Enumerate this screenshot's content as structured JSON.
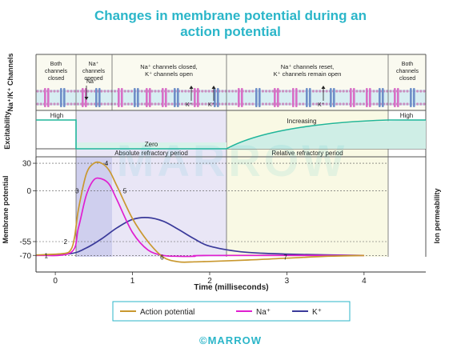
{
  "title_line1": "Changes in membrane potential during an",
  "title_line2": "action potential",
  "row_labels": {
    "channels": "Na⁺/K⁺ Channels",
    "excitability": "Excitability",
    "membrane_potential": "Membrane potential",
    "ion_permeability": "Ion permeability"
  },
  "channel_states": [
    "Both channels closed",
    "Na⁺ channels opened",
    "Na⁺ channels closed, K⁺ channels open",
    "Na⁺ channels reset, K⁺ channels remain open",
    "Both channels closed"
  ],
  "channel_ion_labels": {
    "na": "Na⁺",
    "k": "K⁺"
  },
  "excitability": {
    "high_left": "High",
    "zero": "Zero",
    "increasing": "Increasing",
    "high_right": "High"
  },
  "refractory": {
    "absolute": "Absolute refractory period",
    "relative": "Relative refractory period"
  },
  "x_axis": {
    "label": "Time (milliseconds)",
    "ticks": [
      "0",
      "1",
      "2",
      "3",
      "4"
    ]
  },
  "y_axis": {
    "ticks": [
      "30",
      "0",
      "-55",
      "-70"
    ]
  },
  "point_labels": [
    "1",
    "2",
    "3",
    "4",
    "5",
    "6",
    "7"
  ],
  "legend": {
    "action_potential": "Action potential",
    "na": "Na⁺",
    "k": "K⁺"
  },
  "colors": {
    "action_potential": "#c9982f",
    "na": "#e01fd0",
    "k": "#3a3a9a",
    "accent": "#2bb6c9"
  },
  "watermark": "MARROW",
  "credit": "©MARROW",
  "chart_data": {
    "type": "line",
    "xlabel": "Time (milliseconds)",
    "ylabel": "Membrane potential",
    "xlim": [
      -0.25,
      4.8
    ],
    "ylim": [
      -88,
      37
    ],
    "series": [
      {
        "name": "Action potential",
        "x": [
          -0.25,
          0.1,
          0.2,
          0.25,
          0.3,
          0.4,
          0.5,
          0.6,
          0.7,
          0.8,
          1.0,
          1.2,
          1.4,
          1.6,
          1.8,
          2.0,
          2.5,
          3.0,
          3.5,
          4.0
        ],
        "y": [
          -69.5,
          -68,
          -64,
          -50,
          -20,
          18,
          30,
          30,
          22,
          5,
          -30,
          -55,
          -72,
          -77,
          -77,
          -76.5,
          -75,
          -73,
          -71,
          -70
        ]
      },
      {
        "name": "Na⁺",
        "x": [
          -0.25,
          0.2,
          0.3,
          0.4,
          0.5,
          0.6,
          0.7,
          0.8,
          1.0,
          1.2,
          1.4,
          1.6,
          1.8,
          2.0,
          4.0
        ],
        "y": [
          -70,
          -67,
          -40,
          -5,
          12,
          13,
          7,
          -10,
          -45,
          -64,
          -70,
          -71,
          -71,
          -70,
          -70
        ]
      },
      {
        "name": "K⁺",
        "x": [
          -0.25,
          0.2,
          0.4,
          0.6,
          0.8,
          1.0,
          1.2,
          1.4,
          1.6,
          1.8,
          2.0,
          2.4,
          2.8,
          3.2,
          4.0
        ],
        "y": [
          -70,
          -68,
          -62,
          -52,
          -40,
          -31,
          -29,
          -33,
          -42,
          -52,
          -60,
          -66,
          -68,
          -69,
          -70
        ]
      }
    ],
    "point_markers": [
      {
        "label": "1",
        "x": -0.1,
        "y": -70
      },
      {
        "label": "2",
        "x": 0.15,
        "y": -55
      },
      {
        "label": "3",
        "x": 0.3,
        "y": 0
      },
      {
        "label": "4",
        "x": 0.68,
        "y": 30
      },
      {
        "label": "5",
        "x": 0.92,
        "y": 0
      },
      {
        "label": "6",
        "x": 1.4,
        "y": -72
      },
      {
        "label": "7",
        "x": 3.0,
        "y": -72
      }
    ]
  }
}
